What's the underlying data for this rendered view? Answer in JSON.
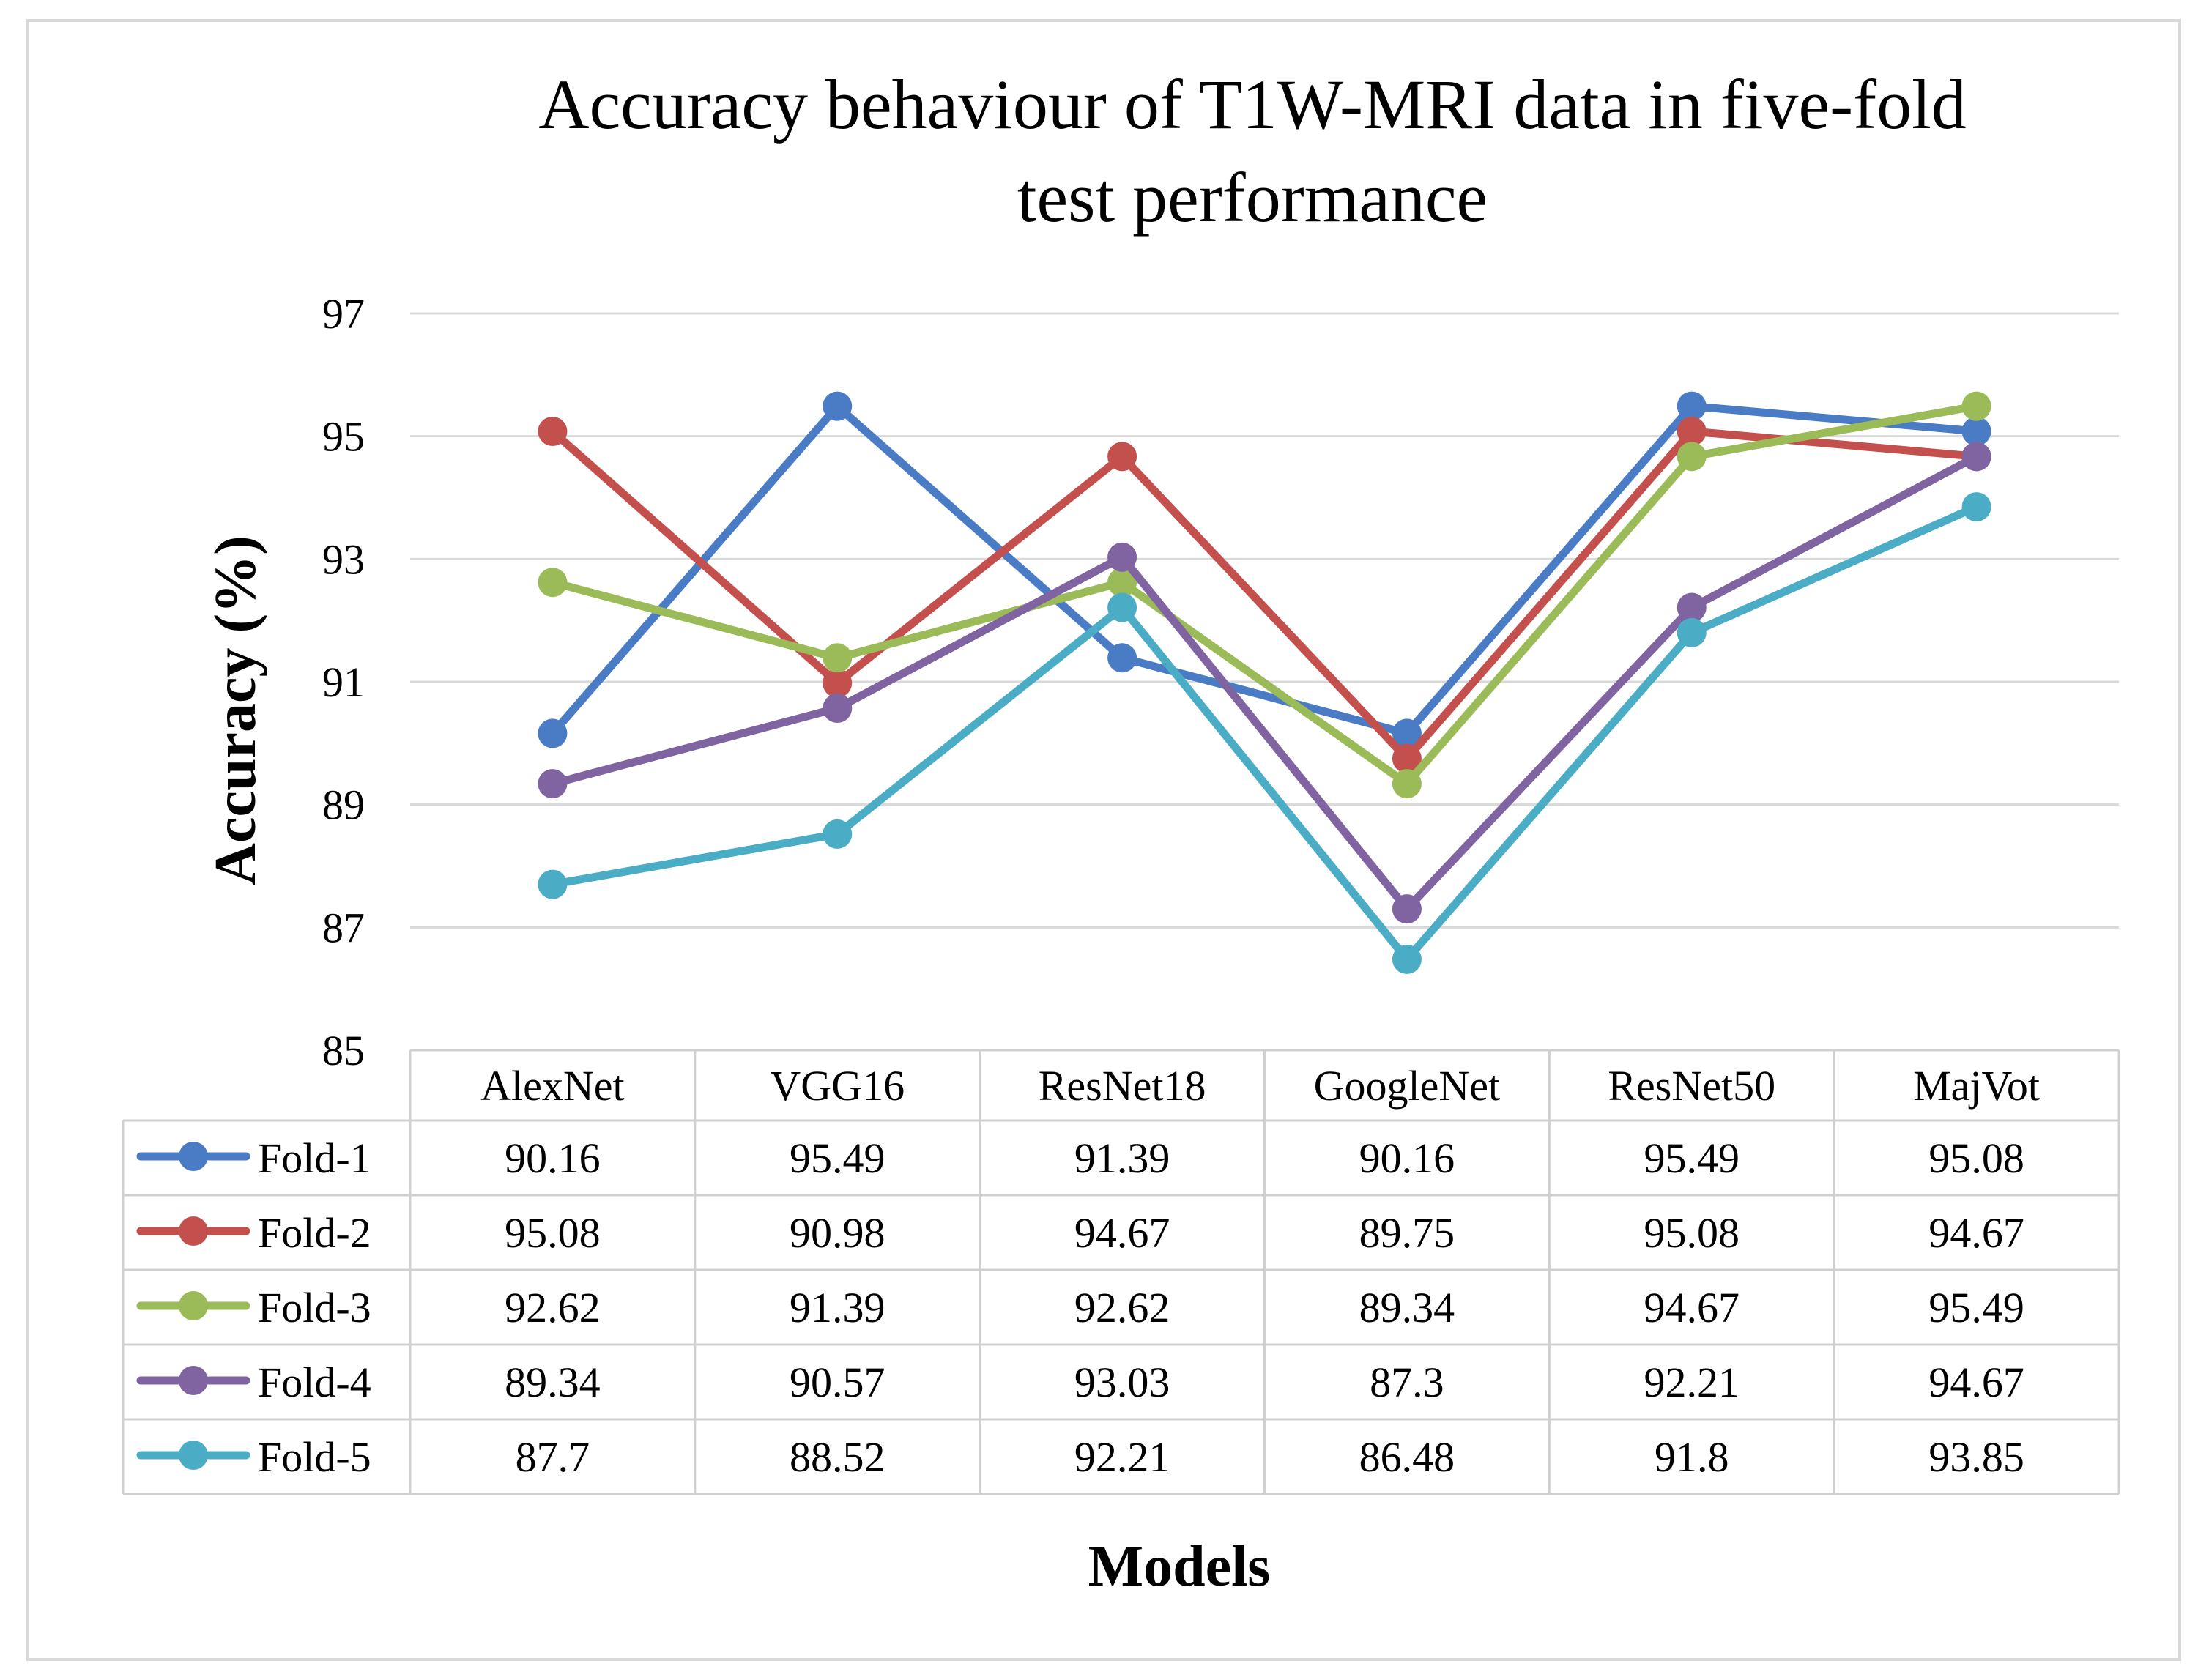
{
  "chart_data": {
    "type": "line",
    "title_lines": [
      "Accuracy  behaviour  of T1W-MRI data in five-fold",
      "test performance"
    ],
    "xlabel": "Models",
    "ylabel": "Accuracy (%)",
    "ylim": [
      85,
      97
    ],
    "yticks": [
      "85",
      "87",
      "89",
      "91",
      "93",
      "95",
      "97"
    ],
    "grid": true,
    "legend": "data-table",
    "categories": [
      "AlexNet",
      "VGG16",
      "ResNet18",
      "GoogleNet",
      "ResNet50",
      "MajVot"
    ],
    "series": [
      {
        "name": "Fold-1",
        "color": "#4a7cc6",
        "values": [
          90.16,
          95.49,
          91.39,
          90.16,
          95.49,
          95.08
        ],
        "labels": [
          "90.16",
          "95.49",
          "91.39",
          "90.16",
          "95.49",
          "95.08"
        ]
      },
      {
        "name": "Fold-2",
        "color": "#c4504d",
        "values": [
          95.08,
          90.98,
          94.67,
          89.75,
          95.08,
          94.67
        ],
        "labels": [
          "95.08",
          "90.98",
          "94.67",
          "89.75",
          "95.08",
          "94.67"
        ]
      },
      {
        "name": "Fold-3",
        "color": "#9bbb59",
        "values": [
          92.62,
          91.39,
          92.62,
          89.34,
          94.67,
          95.49
        ],
        "labels": [
          "92.62",
          "91.39",
          "92.62",
          "89.34",
          "94.67",
          "95.49"
        ]
      },
      {
        "name": "Fold-4",
        "color": "#8064a2",
        "values": [
          89.34,
          90.57,
          93.03,
          87.3,
          92.21,
          94.67
        ],
        "labels": [
          "89.34",
          "90.57",
          "93.03",
          "87.3",
          "92.21",
          "94.67"
        ]
      },
      {
        "name": "Fold-5",
        "color": "#4bacc6",
        "values": [
          87.7,
          88.52,
          92.21,
          86.48,
          91.8,
          93.85
        ],
        "labels": [
          "87.7",
          "88.52",
          "92.21",
          "86.48",
          "91.8",
          "93.85"
        ]
      }
    ]
  }
}
